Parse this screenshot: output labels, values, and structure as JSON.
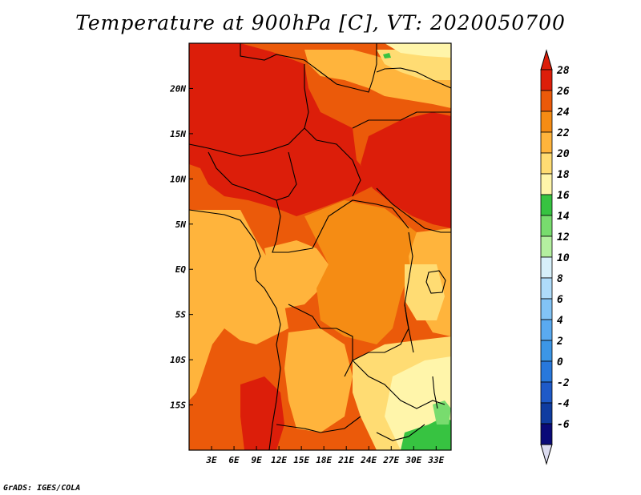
{
  "title": "Temperature at 900hPa [C], VT: 2020050700",
  "credit": "GrADS: IGES/COLA",
  "chart_data": {
    "type": "filled-contour-map",
    "variable": "Temperature at 900hPa",
    "units": "C",
    "valid_time": "2020050700",
    "lon_range": [
      0,
      35
    ],
    "lat_range": [
      -20,
      25
    ],
    "x_ticks": [
      {
        "value": 3,
        "label": "3E"
      },
      {
        "value": 6,
        "label": "6E"
      },
      {
        "value": 9,
        "label": "9E"
      },
      {
        "value": 12,
        "label": "12E"
      },
      {
        "value": 15,
        "label": "15E"
      },
      {
        "value": 18,
        "label": "18E"
      },
      {
        "value": 21,
        "label": "21E"
      },
      {
        "value": 24,
        "label": "24E"
      },
      {
        "value": 27,
        "label": "27E"
      },
      {
        "value": 30,
        "label": "30E"
      },
      {
        "value": 33,
        "label": "33E"
      }
    ],
    "y_ticks": [
      {
        "value": 20,
        "label": "20N"
      },
      {
        "value": 15,
        "label": "15N"
      },
      {
        "value": 10,
        "label": "10N"
      },
      {
        "value": 5,
        "label": "5N"
      },
      {
        "value": 0,
        "label": "EQ"
      },
      {
        "value": -5,
        "label": "5S"
      },
      {
        "value": -10,
        "label": "10S"
      },
      {
        "value": -15,
        "label": "15S"
      }
    ],
    "colorbar": {
      "levels": [
        "-6",
        "-4",
        "-2",
        "0",
        "2",
        "4",
        "6",
        "8",
        "10",
        "12",
        "14",
        "16",
        "18",
        "20",
        "22",
        "24",
        "26",
        "28"
      ],
      "colors": [
        "#0a0a78",
        "#0f3ca0",
        "#1e5ac8",
        "#2878dc",
        "#3c96e6",
        "#5aaaf0",
        "#82c3f5",
        "#afdcfa",
        "#d7f0fa",
        "#b4f0a0",
        "#78dc6e",
        "#37c341",
        "#fff5aa",
        "#ffdc73",
        "#ffb43c",
        "#f58c14",
        "#eb5a0a",
        "#dc1e0a"
      ],
      "under_color": "#dcdcf0",
      "over_color": "#dc1e0a"
    },
    "regions": [
      {
        "name": "base-hot",
        "value": 26,
        "color": "#eb5a0a"
      },
      {
        "name": "west-warm-coast",
        "value": 22,
        "color": "#ffb43c"
      },
      {
        "name": "sahel-north-hot",
        "value": 28,
        "color": "#dc1e0a"
      },
      {
        "name": "central-basin-warm",
        "value": 24,
        "color": "#f58c14"
      },
      {
        "name": "southeast-mild",
        "value": 20,
        "color": "#ffdc73"
      },
      {
        "name": "libyan-north-mild",
        "value": 20,
        "color": "#ffdc73"
      },
      {
        "name": "east-highlands-cool",
        "value": 18,
        "color": "#fff5aa"
      },
      {
        "name": "green-patches",
        "value": 16,
        "color": "#37c341"
      }
    ]
  }
}
